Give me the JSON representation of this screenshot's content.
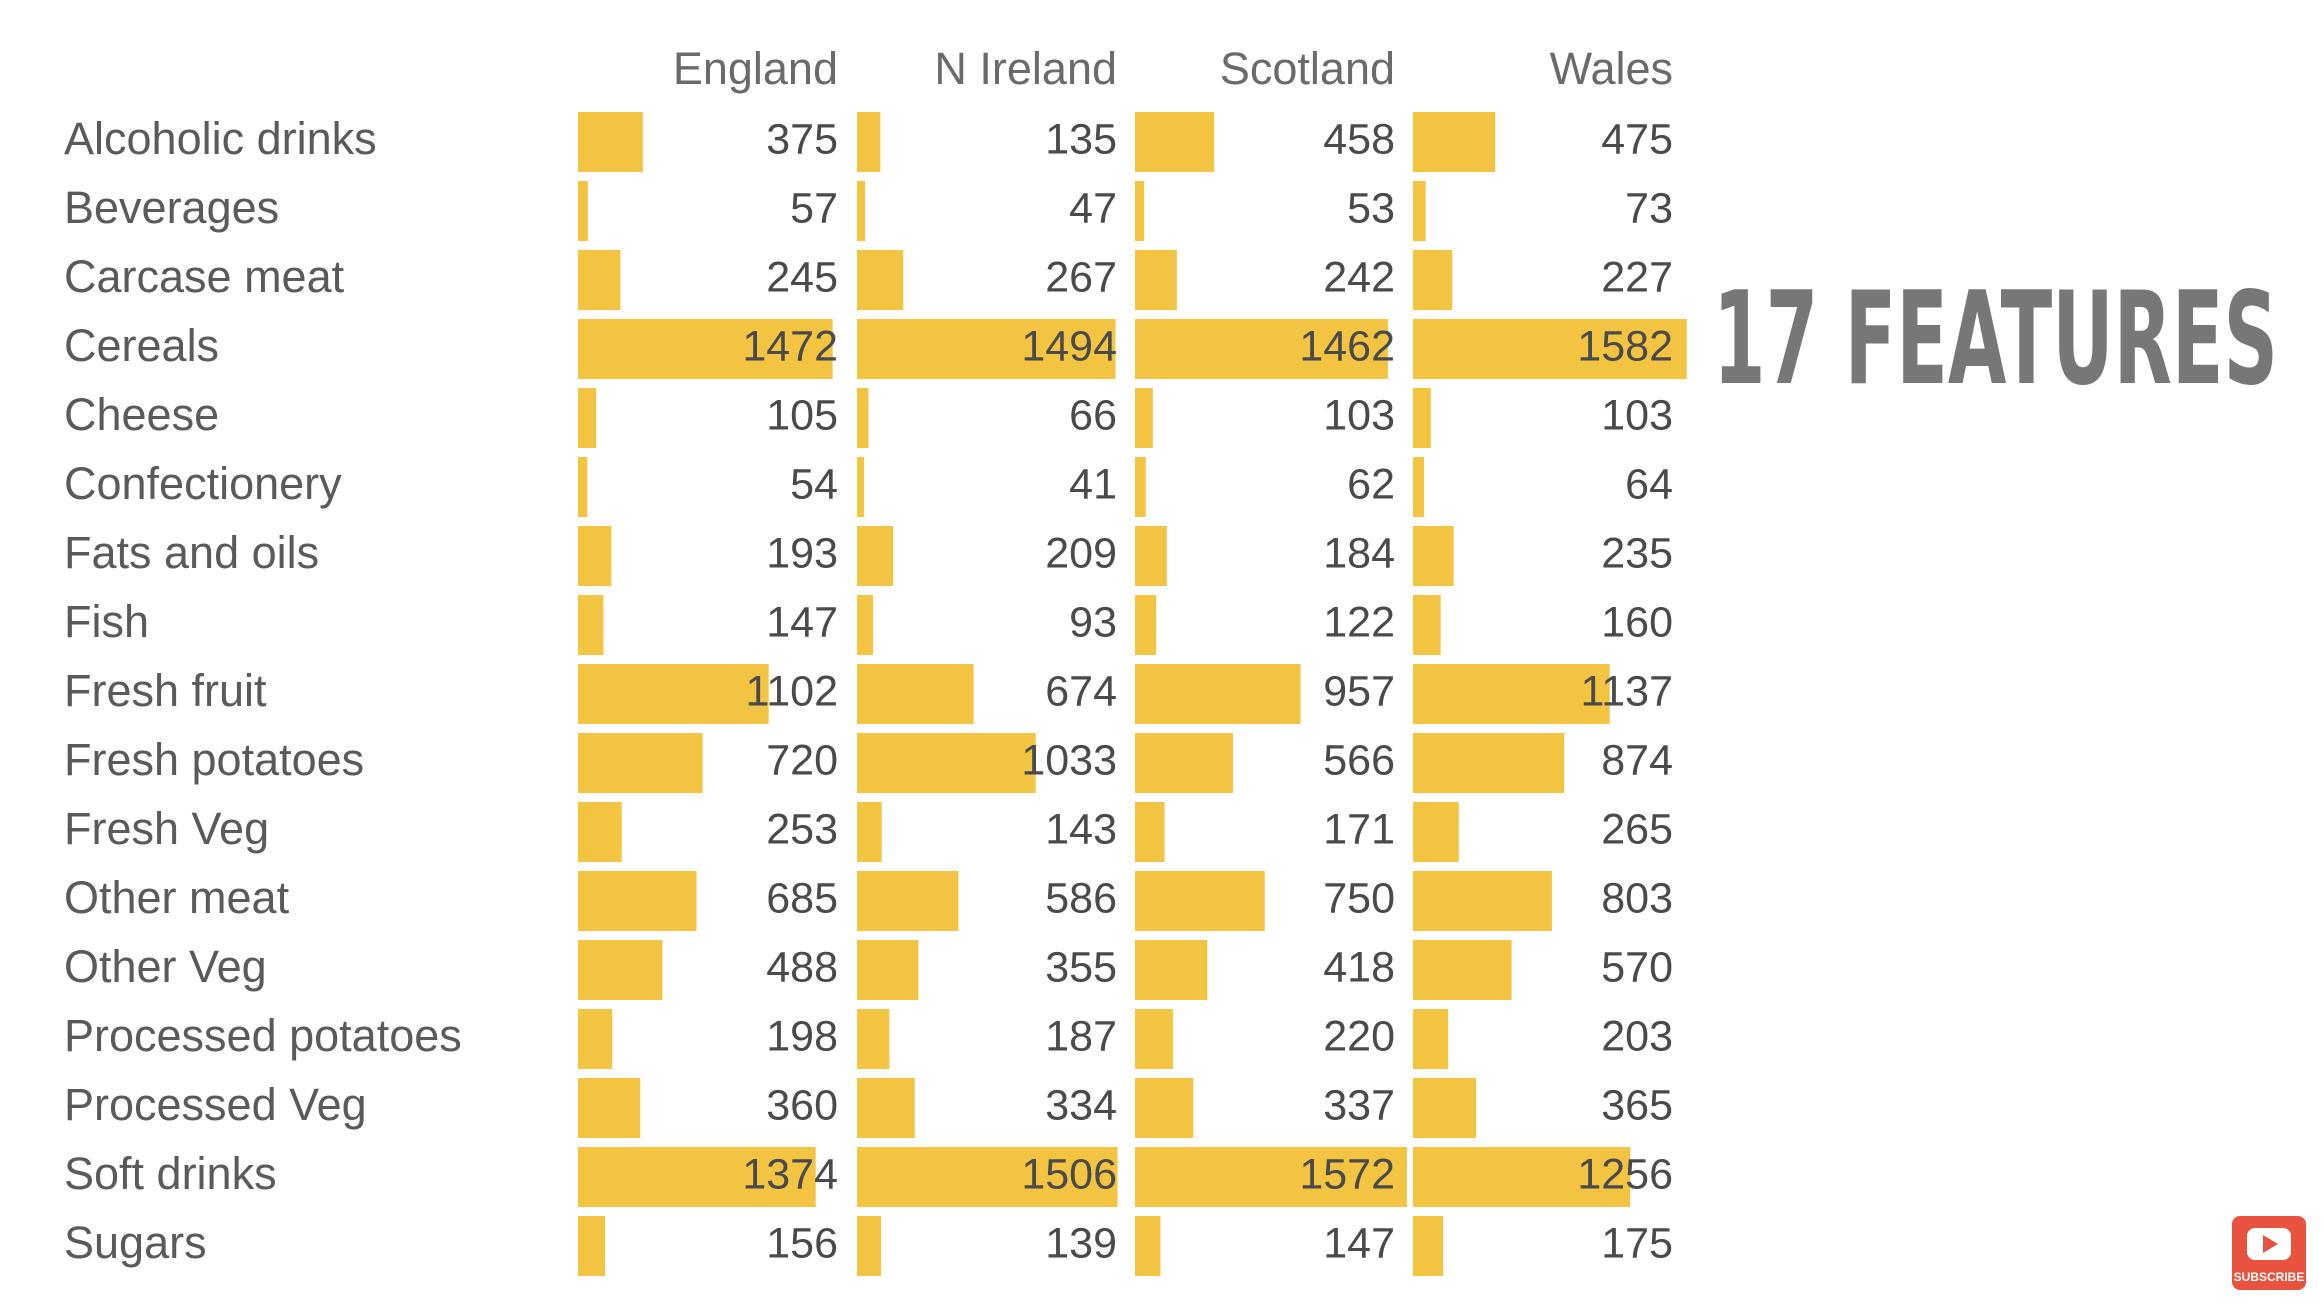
{
  "table": {
    "columns": [
      "England",
      "N Ireland",
      "Scotland",
      "Wales"
    ],
    "rows": [
      {
        "label": "Alcoholic drinks",
        "values": [
          375,
          135,
          458,
          475
        ]
      },
      {
        "label": "Beverages",
        "values": [
          57,
          47,
          53,
          73
        ]
      },
      {
        "label": "Carcase meat",
        "values": [
          245,
          267,
          242,
          227
        ]
      },
      {
        "label": "Cereals",
        "values": [
          1472,
          1494,
          1462,
          1582
        ]
      },
      {
        "label": "Cheese",
        "values": [
          105,
          66,
          103,
          103
        ]
      },
      {
        "label": "Confectionery",
        "values": [
          54,
          41,
          62,
          64
        ]
      },
      {
        "label": "Fats and oils",
        "values": [
          193,
          209,
          184,
          235
        ]
      },
      {
        "label": "Fish",
        "values": [
          147,
          93,
          122,
          160
        ]
      },
      {
        "label": "Fresh fruit",
        "values": [
          1102,
          674,
          957,
          1137
        ]
      },
      {
        "label": "Fresh potatoes",
        "values": [
          720,
          1033,
          566,
          874
        ]
      },
      {
        "label": "Fresh Veg",
        "values": [
          253,
          143,
          171,
          265
        ]
      },
      {
        "label": "Other meat",
        "values": [
          685,
          586,
          750,
          803
        ]
      },
      {
        "label": "Other Veg",
        "values": [
          488,
          355,
          418,
          570
        ]
      },
      {
        "label": "Processed potatoes",
        "values": [
          198,
          187,
          220,
          203
        ]
      },
      {
        "label": "Processed Veg",
        "values": [
          360,
          334,
          337,
          365
        ]
      },
      {
        "label": "Soft drinks",
        "values": [
          1374,
          1506,
          1572,
          1256
        ]
      },
      {
        "label": "Sugars",
        "values": [
          156,
          139,
          147,
          175
        ]
      }
    ],
    "bar_color": "#f2c441"
  },
  "annotation": "17 FEATURES",
  "subscribe_badge": "SUBSCRIBE"
}
